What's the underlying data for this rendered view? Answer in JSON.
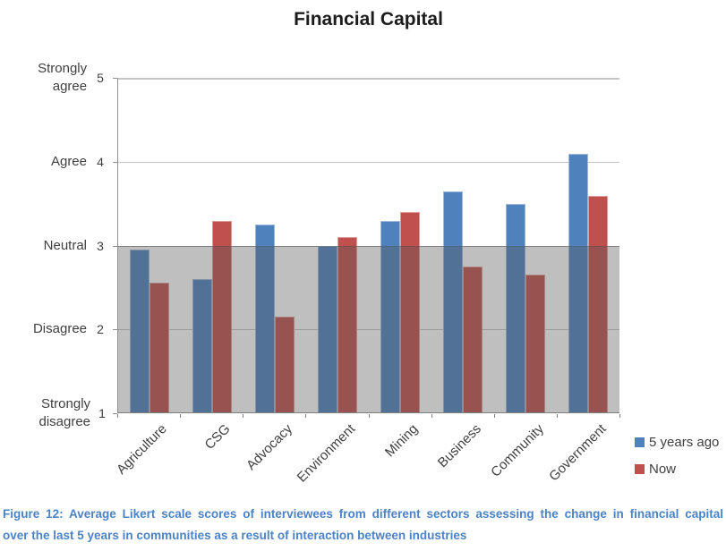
{
  "chart_data": {
    "type": "bar",
    "title": "Financial Capital",
    "categories": [
      "Agriculture",
      "CSG",
      "Advocacy",
      "Environment",
      "Mining",
      "Business",
      "Community",
      "Government"
    ],
    "series": [
      {
        "name": "5 years ago",
        "color": "#4F81BD",
        "values": [
          2.95,
          2.6,
          3.25,
          3.0,
          3.3,
          3.65,
          3.5,
          4.1
        ]
      },
      {
        "name": "Now",
        "color": "#C0504D",
        "values": [
          2.55,
          3.3,
          2.15,
          3.1,
          3.4,
          2.75,
          2.65,
          3.6
        ]
      }
    ],
    "xlabel": "",
    "ylabel": "",
    "ylim": [
      1,
      5
    ],
    "yticks": [
      {
        "value": 5,
        "label": "Strongly agree"
      },
      {
        "value": 4,
        "label": "Agree"
      },
      {
        "value": 3,
        "label": "Neutral"
      },
      {
        "value": 2,
        "label": "Disagree"
      },
      {
        "value": 1,
        "label": "Strongly disagree"
      }
    ],
    "shaded_band": {
      "from": 1,
      "to": 3,
      "color": "rgba(88,88,88,0.38)"
    },
    "grid": true,
    "legend_position": "right"
  },
  "legend": {
    "items": [
      {
        "label": "5 years ago",
        "color": "#4F81BD"
      },
      {
        "label": "Now",
        "color": "#C0504D"
      }
    ]
  },
  "caption": {
    "color": "#4C82C6",
    "line1": "Figure 12: Average Likert scale scores of interviewees from different sectors assessing the change in financial capital",
    "line2": "over the last 5 years in communities as a result of interaction between industries"
  }
}
